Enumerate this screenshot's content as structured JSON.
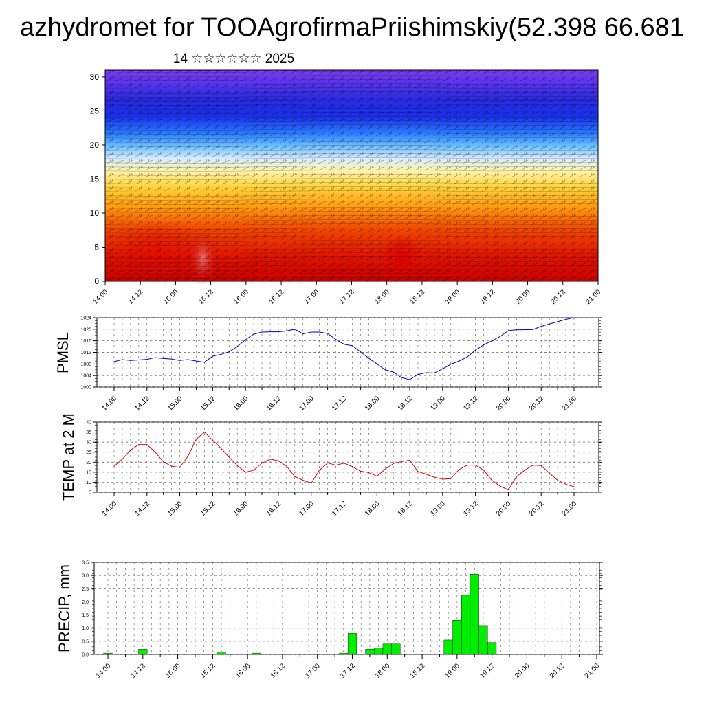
{
  "header": {
    "title": "azhydromet for TOOAgrofirmaPriishimskiy(52.398 66.681",
    "subtitle": "14 ☆☆☆☆☆☆ 2025"
  },
  "time_labels": [
    "14.00",
    "14.12",
    "15.00",
    "15.12",
    "16.00",
    "16.12",
    "17.00",
    "17.12",
    "18.00",
    "18.12",
    "19.00",
    "19.12",
    "20.00",
    "20.12",
    "21.00"
  ],
  "chart_data": [
    {
      "type": "heatmap",
      "title": "",
      "y_ticks": [
        "0",
        "5",
        "10",
        "15",
        "20",
        "25",
        "30"
      ],
      "ylim": [
        0,
        31
      ],
      "colors": {
        "low": "#d40000",
        "mid": "#ffee55",
        "high": "#6a3cf0"
      }
    },
    {
      "type": "line",
      "ylabel": "PMSL",
      "ylim": [
        1000,
        1024
      ],
      "y_ticks": [
        "1000",
        "1004",
        "1008",
        "1012",
        "1016",
        "1020",
        "1024"
      ],
      "color": "#0000cc",
      "x": [
        0,
        0.25,
        0.5,
        0.75,
        1,
        1.25,
        1.5,
        1.75,
        2,
        2.25,
        2.5,
        2.75,
        3,
        3.25,
        3.5,
        3.75,
        4,
        4.25,
        4.5,
        4.75,
        5,
        5.25,
        5.5,
        5.75,
        6,
        6.25,
        6.5,
        6.75,
        7,
        7.25,
        7.5,
        7.75,
        8,
        8.25,
        8.5,
        8.75,
        9,
        9.25,
        9.5,
        9.75,
        10,
        10.25,
        10.5,
        10.75,
        11,
        11.25,
        11.5,
        11.75,
        12,
        12.25,
        12.5,
        12.75,
        13,
        13.25,
        13.5,
        13.75,
        14
      ],
      "values": [
        1008.8,
        1009.5,
        1009.2,
        1009.4,
        1009.6,
        1010.2,
        1009.9,
        1009.7,
        1009.2,
        1009.5,
        1009.0,
        1008.6,
        1010.7,
        1011.3,
        1012.2,
        1014.0,
        1016.4,
        1018.3,
        1019.0,
        1019.1,
        1019.1,
        1019.4,
        1020.0,
        1018.4,
        1019.0,
        1019.0,
        1018.5,
        1016.5,
        1014.8,
        1014.3,
        1012.2,
        1010.0,
        1008.0,
        1006.0,
        1005.2,
        1003.3,
        1002.6,
        1004.4,
        1005.0,
        1004.9,
        1006.3,
        1007.9,
        1009.0,
        1010.4,
        1012.8,
        1014.6,
        1016.0,
        1017.5,
        1019.5,
        1019.8,
        1019.8,
        1019.9,
        1021.0,
        1021.8,
        1022.6,
        1023.4,
        1024.0
      ]
    },
    {
      "type": "line",
      "ylabel": "TEMP at 2 M",
      "ylim": [
        5,
        40
      ],
      "y_ticks": [
        "5",
        "10",
        "15",
        "20",
        "25",
        "30",
        "35",
        "40"
      ],
      "color": "#dd0000",
      "x": [
        0,
        0.25,
        0.5,
        0.75,
        1,
        1.25,
        1.5,
        1.75,
        2,
        2.25,
        2.5,
        2.75,
        3,
        3.25,
        3.5,
        3.75,
        4,
        4.25,
        4.5,
        4.75,
        5,
        5.25,
        5.5,
        5.75,
        6,
        6.25,
        6.5,
        6.75,
        7,
        7.25,
        7.5,
        7.75,
        8,
        8.25,
        8.5,
        8.75,
        9,
        9.25,
        9.5,
        9.75,
        10,
        10.25,
        10.5,
        10.75,
        11,
        11.25,
        11.5,
        11.75,
        12,
        12.25,
        12.5,
        12.75,
        13,
        13.25,
        13.5,
        13.75,
        14
      ],
      "values": [
        18,
        21.5,
        26,
        28.8,
        28.8,
        25,
        20.2,
        18,
        17.4,
        23,
        31.5,
        35,
        31,
        27,
        22.5,
        18.3,
        15,
        16,
        19.5,
        21.5,
        20.7,
        18,
        12.8,
        11,
        9.5,
        16,
        19.6,
        18.5,
        19.5,
        17.8,
        15.5,
        14.8,
        13,
        16.5,
        19.3,
        20.3,
        21,
        15.3,
        14,
        12.5,
        11.5,
        11.8,
        16.3,
        18.5,
        18.5,
        16,
        11,
        8,
        6.2,
        12.8,
        16,
        18.5,
        18.3,
        14.5,
        11,
        9,
        7.8
      ]
    },
    {
      "type": "bar",
      "ylabel": "PRECIP, mm",
      "ylim": [
        0,
        3.5
      ],
      "y_ticks": [
        "0.0",
        "0.5",
        "1.0",
        "1.5",
        "2.0",
        "2.5",
        "3.0",
        "3.5"
      ],
      "color": "#00ee00",
      "x": [
        0,
        1,
        3.25,
        4.25,
        6.75,
        7,
        7.5,
        7.75,
        8,
        8.25,
        9.75,
        10,
        10.25,
        10.5,
        10.75,
        11
      ],
      "values": [
        0.05,
        0.2,
        0.1,
        0.05,
        0.05,
        0.8,
        0.2,
        0.25,
        0.4,
        0.4,
        0.55,
        1.3,
        2.25,
        3.05,
        1.1,
        0.45
      ]
    }
  ]
}
